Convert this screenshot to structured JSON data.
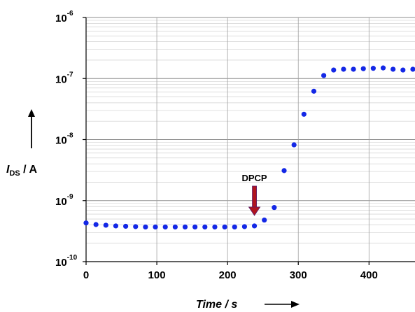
{
  "chart_data": {
    "type": "scatter",
    "title": "",
    "xlabel": "Time / s",
    "ylabel": {
      "main": "I",
      "subscript": "DS",
      "unit": " / A"
    },
    "x_ticks": [
      0,
      100,
      200,
      300,
      400
    ],
    "y_ticks": [
      {
        "base": "10",
        "exp": "-10",
        "value": 1e-10
      },
      {
        "base": "10",
        "exp": "-9",
        "value": 1e-09
      },
      {
        "base": "10",
        "exp": "-8",
        "value": 1e-08
      },
      {
        "base": "10",
        "exp": "-7",
        "value": 1e-07
      },
      {
        "base": "10",
        "exp": "-6",
        "value": 1e-06
      }
    ],
    "xlim": [
      0,
      465
    ],
    "ylim": [
      1e-10,
      1e-06
    ],
    "yscale": "log",
    "grid": true,
    "marker_color": "#1428e6",
    "annotation": {
      "label": "DPCP",
      "x": 238,
      "arrow_color": "#b0141e"
    },
    "series": [
      {
        "x": [
          0,
          14,
          28,
          42,
          56,
          70,
          84,
          98,
          112,
          126,
          140,
          154,
          168,
          182,
          196,
          210,
          224,
          238,
          252,
          266,
          280,
          294,
          308,
          322,
          336,
          350,
          364,
          378,
          392,
          406,
          420,
          434,
          448,
          462
        ],
        "y": [
          4.3e-10,
          4.05e-10,
          3.95e-10,
          3.85e-10,
          3.8e-10,
          3.75e-10,
          3.7e-10,
          3.7e-10,
          3.7e-10,
          3.7e-10,
          3.7e-10,
          3.7e-10,
          3.7e-10,
          3.7e-10,
          3.7e-10,
          3.7e-10,
          3.75e-10,
          3.85e-10,
          4.8e-10,
          7.7e-10,
          3.1e-09,
          8.2e-09,
          2.6e-08,
          6.2e-08,
          1.12e-07,
          1.38e-07,
          1.42e-07,
          1.42e-07,
          1.45e-07,
          1.47e-07,
          1.49e-07,
          1.42e-07,
          1.38e-07,
          1.42e-07
        ]
      }
    ]
  }
}
